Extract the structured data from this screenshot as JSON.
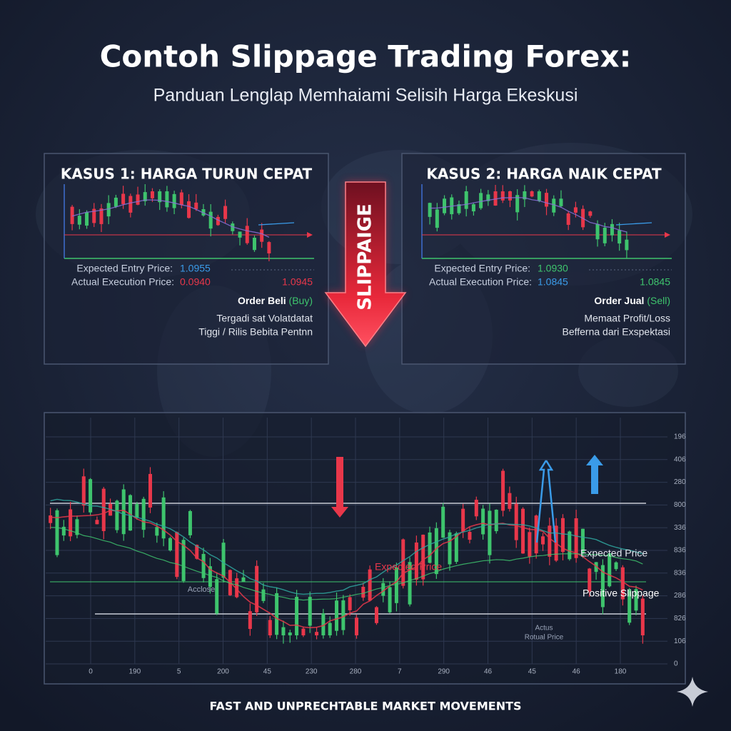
{
  "title": "Contoh Slippage Trading Forex:",
  "subtitle": "Panduan Lenglap Memhaiami Selisih Harga Ekeskusi",
  "slippage_label": "SLIPPAIGE",
  "cases": [
    {
      "title": "KASUS 1: HARGA TURUN CEPAT",
      "expected_label": "Expected Entry Price:",
      "expected_value": "1.0955",
      "actual_label": "Actual Execution Price:",
      "actual_value": "0.0940",
      "side_value": "1.0945",
      "order_label": "Order Beli",
      "order_side": "(Buy)",
      "notes": [
        "Tergadi sat Volatdatat",
        "Tiggi / Rilis Bebita Pentnn"
      ]
    },
    {
      "title": "KASUS 2: HARGA NAIK CEPAT",
      "expected_label": "Expected Entry Price:",
      "expected_value": "1.0930",
      "actual_label": "Actual Execution Price:",
      "actual_value": "1.0845",
      "side_value": "1.0845",
      "order_label": "Order Jual",
      "order_side": "(Sell)",
      "notes": [
        "Memaat Profit/Loss",
        "Befferna dari Exspektasi"
      ]
    }
  ],
  "main_chart": {
    "y_labels": [
      "196",
      "406",
      "280",
      "800",
      "336",
      "836",
      "836",
      "286",
      "826",
      "106",
      "0"
    ],
    "x_labels": [
      "0",
      "190",
      "5",
      "200",
      "45",
      "230",
      "280",
      "7",
      "290",
      "46",
      "45",
      "46",
      "180"
    ],
    "annotations": {
      "acclose": "Acclose",
      "expected_left": "Expected Price",
      "expected_right": "Expected Price",
      "positive": "Positive Slippage",
      "actual_1": "Actus",
      "actual_2": "Rotual Price"
    }
  },
  "footer": "FAST AND UNPRECHTABLE MARKET MOVEMENTS"
}
